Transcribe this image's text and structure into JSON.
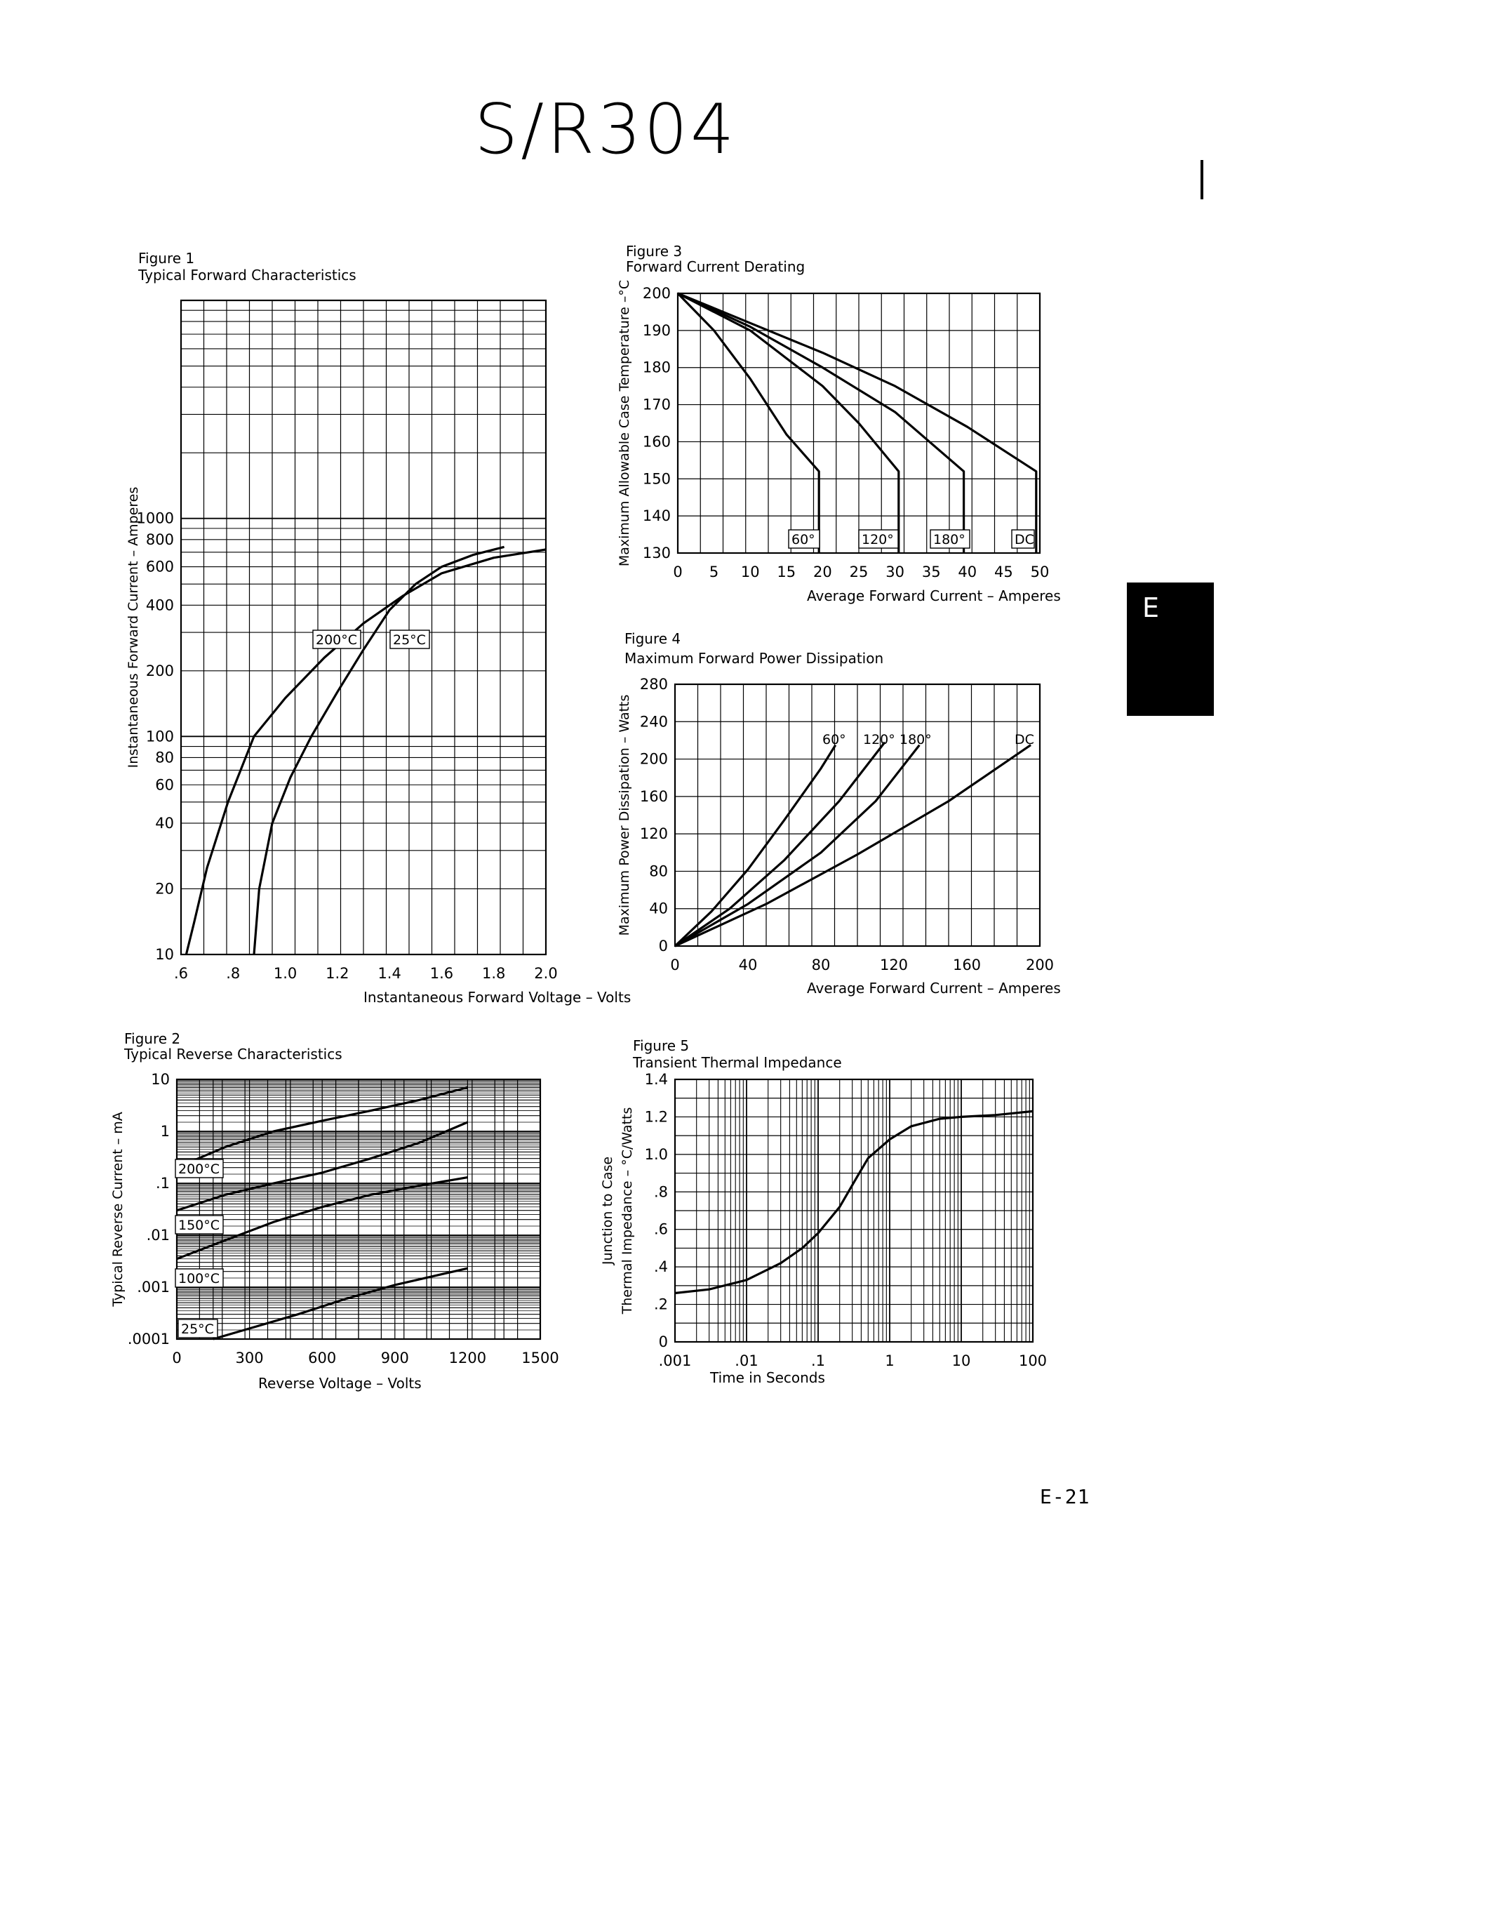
{
  "page": {
    "title": "S/R304",
    "tab_letter": "E",
    "page_number": "E-21"
  },
  "chart_data": [
    {
      "type": "line",
      "figure_label": "Figure 1",
      "title": "Typical Forward Characteristics",
      "xlabel": "Instantaneous Forward Voltage – Volts",
      "ylabel": "Instantaneous Forward Current – Amperes",
      "x_scale": "linear",
      "y_scale": "log",
      "xlim": [
        0.6,
        2.0
      ],
      "ylim": [
        10,
        10000
      ],
      "x_ticks": [
        0.6,
        0.8,
        1.0,
        1.2,
        1.4,
        1.6,
        1.8,
        2.0
      ],
      "x_tick_labels": [
        ".6",
        ".8",
        "1.0",
        "1.2",
        "1.4",
        "1.6",
        "1.8",
        "2.0"
      ],
      "y_ticks": [
        10,
        20,
        40,
        60,
        80,
        100,
        200,
        400,
        600,
        800,
        1000
      ],
      "y_tick_labels": [
        "10",
        "20",
        "40",
        "60",
        "80",
        "100",
        "200",
        "400",
        "600",
        "800",
        "1000"
      ],
      "grid": true,
      "series": [
        {
          "name": "200°C",
          "label": "200°C",
          "x": [
            0.62,
            0.65,
            0.7,
            0.78,
            0.88,
            1.0,
            1.15,
            1.3,
            1.45,
            1.6,
            1.8,
            2.0
          ],
          "y": [
            10,
            14,
            25,
            50,
            100,
            150,
            230,
            330,
            440,
            560,
            660,
            720
          ]
        },
        {
          "name": "25°C",
          "label": "25°C",
          "x": [
            0.88,
            0.9,
            0.95,
            1.02,
            1.1,
            1.2,
            1.3,
            1.4,
            1.5,
            1.6,
            1.72,
            1.84
          ],
          "y": [
            10,
            20,
            40,
            65,
            100,
            160,
            250,
            380,
            500,
            600,
            680,
            740
          ]
        }
      ]
    },
    {
      "type": "line",
      "figure_label": "Figure 2",
      "title": "Typical Reverse Characteristics",
      "xlabel": "Reverse Voltage – Volts",
      "ylabel": "Typical Reverse Current – mA",
      "x_scale": "linear",
      "y_scale": "log",
      "xlim": [
        0,
        1500
      ],
      "ylim": [
        0.0001,
        10
      ],
      "x_ticks": [
        0,
        300,
        600,
        900,
        1200,
        1500
      ],
      "x_tick_labels": [
        "0",
        "300",
        "600",
        "900",
        "1200",
        "1500"
      ],
      "y_ticks": [
        0.0001,
        0.001,
        0.01,
        0.1,
        1,
        10
      ],
      "y_tick_labels": [
        ".0001",
        ".001",
        ".01",
        ".1",
        "1",
        "10"
      ],
      "grid": true,
      "series": [
        {
          "name": "200°C",
          "label": "200°C",
          "x": [
            0,
            200,
            400,
            600,
            800,
            1000,
            1200
          ],
          "y": [
            0.2,
            0.5,
            1.0,
            1.6,
            2.5,
            4.0,
            7.0
          ]
        },
        {
          "name": "150°C",
          "label": "150°C",
          "x": [
            0,
            200,
            400,
            600,
            800,
            1000,
            1200
          ],
          "y": [
            0.03,
            0.06,
            0.1,
            0.16,
            0.3,
            0.6,
            1.5
          ]
        },
        {
          "name": "100°C",
          "label": "100°C",
          "x": [
            0,
            200,
            400,
            600,
            800,
            1000,
            1200
          ],
          "y": [
            0.0035,
            0.008,
            0.018,
            0.035,
            0.06,
            0.09,
            0.13
          ]
        },
        {
          "name": "25°C",
          "label": "25°C",
          "x": [
            150,
            300,
            500,
            700,
            900,
            1100,
            1200
          ],
          "y": [
            0.0001,
            0.00016,
            0.0003,
            0.0006,
            0.0011,
            0.0018,
            0.0023
          ]
        }
      ]
    },
    {
      "type": "line",
      "figure_label": "Figure 3",
      "title": "Forward Current Derating",
      "xlabel": "Average Forward Current – Amperes",
      "ylabel": "Maximum Allowable Case Temperature –°C",
      "x_scale": "linear",
      "y_scale": "linear",
      "xlim": [
        0,
        50
      ],
      "ylim": [
        130,
        200
      ],
      "x_ticks": [
        0,
        5,
        10,
        15,
        20,
        25,
        30,
        35,
        40,
        45,
        50
      ],
      "x_tick_labels": [
        "0",
        "5",
        "10",
        "15",
        "20",
        "25",
        "30",
        "35",
        "40",
        "45",
        "50"
      ],
      "y_ticks": [
        130,
        140,
        150,
        160,
        170,
        180,
        190,
        200
      ],
      "y_tick_labels": [
        "130",
        "140",
        "150",
        "160",
        "170",
        "180",
        "190",
        "200"
      ],
      "grid": true,
      "series": [
        {
          "name": "60°",
          "label": "60°",
          "x": [
            0,
            5,
            10,
            15,
            19.5,
            19.5
          ],
          "y": [
            200,
            190,
            177,
            162,
            152,
            130
          ]
        },
        {
          "name": "120°",
          "label": "120°",
          "x": [
            0,
            10,
            20,
            25,
            30.5,
            30.5
          ],
          "y": [
            200,
            190,
            175,
            165,
            152,
            130
          ]
        },
        {
          "name": "180°",
          "label": "180°",
          "x": [
            0,
            10,
            20,
            30,
            39.5,
            39.5
          ],
          "y": [
            200,
            191,
            180,
            168,
            152,
            130
          ]
        },
        {
          "name": "DC",
          "label": "DC",
          "x": [
            0,
            10,
            20,
            30,
            40,
            49.5,
            49.5
          ],
          "y": [
            200,
            192,
            184,
            175,
            164,
            152,
            130
          ]
        }
      ]
    },
    {
      "type": "line",
      "figure_label": "Figure 4",
      "title": "Maximum Forward Power Dissipation",
      "xlabel": "Average Forward Current – Amperes",
      "ylabel": "Maximum Power Dissipation – Watts",
      "x_scale": "linear",
      "y_scale": "linear",
      "xlim": [
        0,
        200
      ],
      "ylim": [
        0,
        280
      ],
      "x_ticks": [
        0,
        40,
        80,
        120,
        160,
        200
      ],
      "x_tick_labels": [
        "0",
        "40",
        "80",
        "120",
        "160",
        "200"
      ],
      "y_ticks": [
        0,
        40,
        80,
        120,
        160,
        200,
        240,
        280
      ],
      "y_tick_labels": [
        "0",
        "40",
        "80",
        "120",
        "160",
        "200",
        "240",
        "280"
      ],
      "grid": true,
      "series": [
        {
          "name": "60°",
          "label": "60°",
          "x": [
            0,
            20,
            40,
            60,
            80,
            88
          ],
          "y": [
            0,
            37,
            82,
            135,
            190,
            215
          ]
        },
        {
          "name": "120°",
          "label": "120°",
          "x": [
            0,
            30,
            60,
            90,
            115
          ],
          "y": [
            0,
            40,
            92,
            155,
            218
          ]
        },
        {
          "name": "180°",
          "label": "180°",
          "x": [
            0,
            40,
            80,
            110,
            134
          ],
          "y": [
            0,
            45,
            100,
            155,
            215
          ]
        },
        {
          "name": "DC",
          "label": "DC",
          "x": [
            0,
            50,
            100,
            150,
            195
          ],
          "y": [
            0,
            45,
            98,
            155,
            215
          ]
        }
      ]
    },
    {
      "type": "line",
      "figure_label": "Figure 5",
      "title": "Transient Thermal Impedance",
      "xlabel": "Time in Seconds",
      "ylabel_line1": "Junction to Case",
      "ylabel_line2": "Thermal Impedance – °C/Watts",
      "x_scale": "log",
      "y_scale": "linear",
      "xlim": [
        0.001,
        100
      ],
      "ylim": [
        0,
        1.4
      ],
      "x_ticks": [
        0.001,
        0.01,
        0.1,
        1,
        10,
        100
      ],
      "x_tick_labels": [
        ".001",
        ".01",
        ".1",
        "1",
        "10",
        "100"
      ],
      "y_ticks": [
        0,
        0.2,
        0.4,
        0.6,
        0.8,
        1.0,
        1.2,
        1.4
      ],
      "y_tick_labels": [
        "0",
        ".2",
        ".4",
        ".6",
        ".8",
        "1.0",
        "1.2",
        "1.4"
      ],
      "grid": true,
      "series": [
        {
          "name": "",
          "x": [
            0.001,
            0.003,
            0.01,
            0.03,
            0.06,
            0.1,
            0.2,
            0.35,
            0.5,
            1,
            2,
            5,
            10,
            30,
            100
          ],
          "y": [
            0.26,
            0.28,
            0.33,
            0.42,
            0.5,
            0.58,
            0.72,
            0.88,
            0.98,
            1.08,
            1.15,
            1.19,
            1.2,
            1.21,
            1.23
          ]
        }
      ]
    }
  ]
}
